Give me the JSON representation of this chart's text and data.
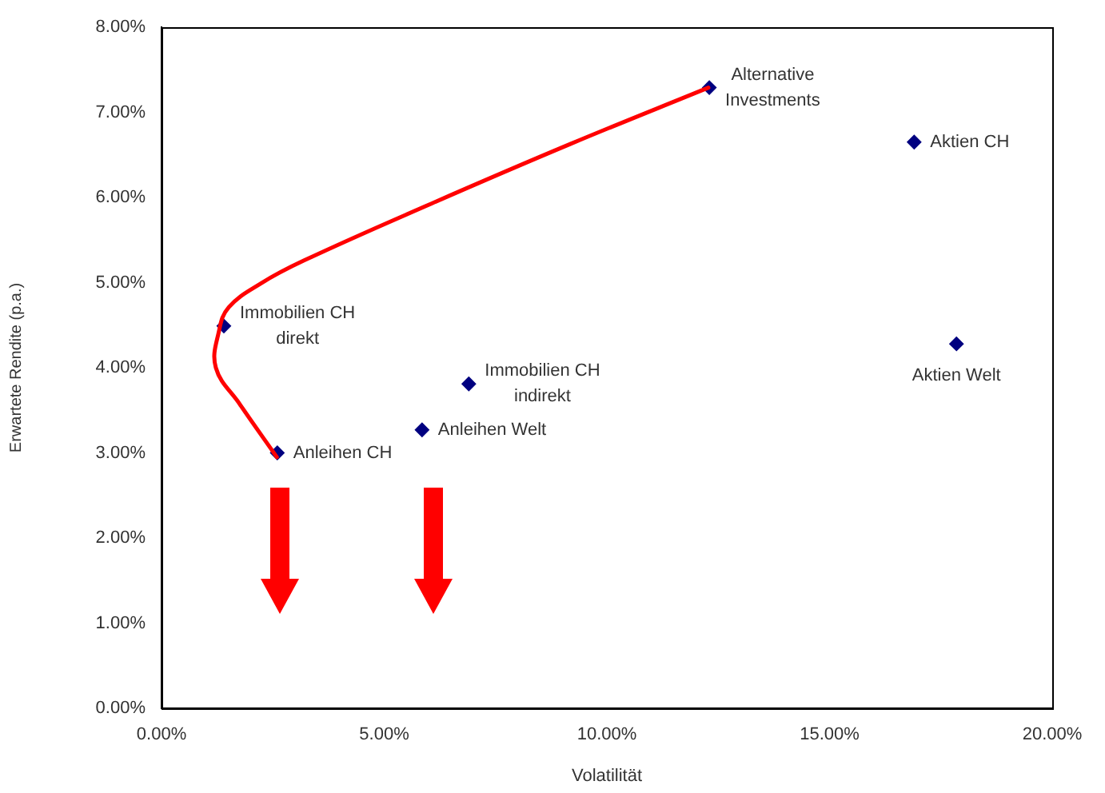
{
  "chart_data": {
    "type": "scatter",
    "xlabel": "Volatilität",
    "ylabel": "Erwartete Rendite (p.a.)",
    "series": [
      {
        "type": "line",
        "color": "#ff0000",
        "marker": "none",
        "x": [
          2.59,
          1.76,
          1.22,
          1.29,
          1.51,
          2.23,
          3.2,
          6.07,
          9.19,
          12.28
        ],
        "values": [
          2.95,
          3.57,
          4.0,
          4.43,
          4.71,
          4.99,
          5.26,
          5.93,
          6.63,
          7.29
        ]
      },
      {
        "type": "scatter",
        "color": "#000080",
        "marker": "diamond",
        "x": [
          2.6,
          5.85,
          6.9,
          1.4,
          12.3,
          16.9,
          17.85
        ],
        "values": [
          3.0,
          3.27,
          3.81,
          4.49,
          7.29,
          6.65,
          4.28
        ]
      }
    ],
    "annotations": [
      {
        "text": "Anleihen CH",
        "x": 2.6,
        "y": 3.0
      },
      {
        "text": "Anleihen Welt",
        "x": 5.85,
        "y": 3.27
      },
      {
        "text": "Immobilien CH indirekt",
        "x": 6.9,
        "y": 3.81
      },
      {
        "text": "Immobilien CH direkt",
        "x": 1.4,
        "y": 4.49
      },
      {
        "text": "Alternative Investments",
        "x": 12.3,
        "y": 7.29
      },
      {
        "text": "Aktien CH",
        "x": 16.9,
        "y": 6.65
      },
      {
        "text": "Aktien Welt",
        "x": 17.85,
        "y": 4.28
      }
    ],
    "xlim": [
      0,
      20
    ],
    "xticks": [
      {
        "value": 0,
        "label": "0.00%"
      },
      {
        "value": 5,
        "label": "5.00%"
      },
      {
        "value": 10,
        "label": "10.00%"
      },
      {
        "value": 15,
        "label": "15.00%"
      },
      {
        "value": 20,
        "label": "20.00%"
      }
    ],
    "ylim": [
      0,
      8
    ],
    "yticks": [
      {
        "value": 0,
        "label": "0.00%"
      },
      {
        "value": 1,
        "label": "1.00%"
      },
      {
        "value": 2,
        "label": "2.00%"
      },
      {
        "value": 3,
        "label": "3.00%"
      },
      {
        "value": 4,
        "label": "4.00%"
      },
      {
        "value": 5,
        "label": "5.00%"
      },
      {
        "value": 6,
        "label": "6.00%"
      },
      {
        "value": 7,
        "label": "7.00%"
      },
      {
        "value": 8,
        "label": "8.00%"
      }
    ],
    "grid": false,
    "legend": false
  }
}
